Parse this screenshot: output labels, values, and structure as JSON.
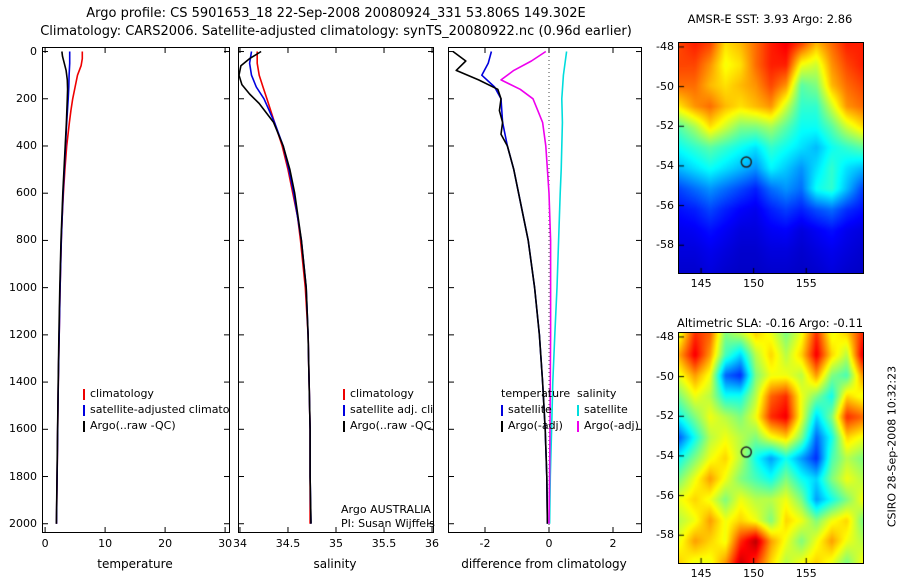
{
  "title": {
    "line1": "Argo profile: CS 5901653_18 22-Sep-2008 20080924_331 53.806S 149.302E",
    "line2": "Climatology: CARS2006. Satellite-adjusted climatology: synTS_20080922.nc (0.96d earlier)"
  },
  "annotations": {
    "program": "Argo AUSTRALIA",
    "pi": "PI: Susan Wijffels"
  },
  "watermark": "CSIRO 28-Sep-2008 10:32:23",
  "colors": {
    "climatology": "#ee0000",
    "satellite": "#0000dd",
    "argo": "#000000",
    "salinity_satellite": "#00dddd",
    "salinity_argo": "#ee00ee"
  },
  "chart_data": [
    {
      "type": "line",
      "target": "plot-temp",
      "title": "",
      "xlabel": "temperature",
      "ylabel": "",
      "xlim": [
        -0.35,
        30.65
      ],
      "ylim": [
        -15,
        2035
      ],
      "xticks": [
        0,
        10,
        20,
        30
      ],
      "yticks": [
        0,
        200,
        400,
        600,
        800,
        1000,
        1200,
        1400,
        1600,
        1800,
        2000
      ],
      "ytick_labels": true,
      "grid": false,
      "series": [
        {
          "name": "climatology",
          "color": "#ee0000",
          "p": [
            0,
            30,
            60,
            100,
            150,
            200,
            250,
            300,
            400,
            500,
            600,
            700,
            800,
            900,
            1000,
            1200,
            1400,
            1600,
            1800,
            2000
          ],
          "v": [
            6.2,
            6.2,
            6.0,
            5.4,
            5.0,
            4.6,
            4.3,
            4.05,
            3.6,
            3.3,
            3.05,
            2.85,
            2.7,
            2.6,
            2.5,
            2.35,
            2.2,
            2.1,
            2.0,
            1.9
          ]
        },
        {
          "name": "satellite-adjusted climatology",
          "color": "#0000dd",
          "p": [
            0,
            50,
            100,
            150,
            200,
            300,
            400,
            500,
            600,
            800,
            1000,
            1200,
            1400,
            1600,
            1800,
            2000
          ],
          "v": [
            4.1,
            4.1,
            4.0,
            3.95,
            3.85,
            3.6,
            3.4,
            3.2,
            3.0,
            2.7,
            2.5,
            2.35,
            2.2,
            2.1,
            2.0,
            1.9
          ]
        },
        {
          "name": "Argo(..raw -QC)",
          "color": "#000000",
          "p": [
            0,
            20,
            50,
            80,
            120,
            160,
            200,
            300,
            400,
            500,
            600,
            800,
            1000,
            1200,
            1400,
            1600,
            1800,
            2000
          ],
          "v": [
            2.8,
            2.9,
            3.2,
            3.5,
            3.7,
            3.75,
            3.7,
            3.55,
            3.35,
            3.15,
            2.95,
            2.65,
            2.45,
            2.3,
            2.18,
            2.08,
            1.98,
            1.88
          ]
        }
      ],
      "legend": [
        {
          "label": "climatology",
          "color": "#ee0000"
        },
        {
          "label": "satellite-adjusted climatology",
          "color": "#0000dd"
        },
        {
          "label": "Argo(..raw -QC)",
          "color": "#000000"
        }
      ]
    },
    {
      "type": "line",
      "target": "plot-sal",
      "title": "",
      "xlabel": "salinity",
      "ylabel": "",
      "xlim": [
        33.99,
        36.01
      ],
      "ylim": [
        -15,
        2035
      ],
      "xticks": [
        34,
        34.5,
        35,
        35.5,
        36
      ],
      "yticks": [
        0,
        200,
        400,
        600,
        800,
        1000,
        1200,
        1400,
        1600,
        1800,
        2000
      ],
      "ytick_labels": false,
      "grid": false,
      "series": [
        {
          "name": "climatology",
          "color": "#ee0000",
          "p": [
            0,
            50,
            100,
            150,
            200,
            300,
            400,
            500,
            600,
            700,
            800,
            1000,
            1200,
            1400,
            1600,
            1800,
            2000
          ],
          "v": [
            34.18,
            34.18,
            34.2,
            34.24,
            34.28,
            34.36,
            34.44,
            34.5,
            34.55,
            34.6,
            34.63,
            34.68,
            34.71,
            34.72,
            34.73,
            34.73,
            34.73
          ]
        },
        {
          "name": "satellite adj. clim.",
          "color": "#0000dd",
          "p": [
            0,
            50,
            100,
            150,
            200,
            300,
            400,
            500,
            600,
            800,
            1000,
            1200,
            1400,
            1600,
            1800,
            2000
          ],
          "v": [
            34.12,
            34.1,
            34.12,
            34.17,
            34.25,
            34.36,
            34.45,
            34.51,
            34.56,
            34.64,
            34.69,
            34.71,
            34.72,
            34.73,
            34.73,
            34.74
          ]
        },
        {
          "name": "Argo(..raw -QC)",
          "color": "#000000",
          "p": [
            0,
            30,
            60,
            100,
            140,
            180,
            220,
            300,
            400,
            500,
            600,
            800,
            1000,
            1200,
            1400,
            1600,
            1800,
            2000
          ],
          "v": [
            34.22,
            34.1,
            34.01,
            33.99,
            34.02,
            34.1,
            34.2,
            34.35,
            34.45,
            34.52,
            34.57,
            34.64,
            34.69,
            34.71,
            34.72,
            34.73,
            34.73,
            34.74
          ]
        }
      ],
      "legend": [
        {
          "label": "climatology",
          "color": "#ee0000"
        },
        {
          "label": "satellite adj. clim.",
          "color": "#0000dd"
        },
        {
          "label": "Argo(..raw -QC)",
          "color": "#000000"
        }
      ]
    },
    {
      "type": "line",
      "target": "plot-diff",
      "title": "",
      "xlabel": "difference from climatology",
      "ylabel": "",
      "xlim": [
        -3.125,
        2.875
      ],
      "ylim": [
        -15,
        2035
      ],
      "xticks": [
        -2,
        0,
        2
      ],
      "yticks": [
        0,
        200,
        400,
        600,
        800,
        1000,
        1200,
        1400,
        1600,
        1800,
        2000
      ],
      "ytick_labels": false,
      "grid": false,
      "zeroline": true,
      "series": [
        {
          "name": "temperature satellite",
          "color": "#0000dd",
          "p": [
            0,
            50,
            100,
            150,
            200,
            300,
            400,
            500,
            600,
            700,
            800,
            900,
            1000,
            1200,
            1400,
            1600,
            1800,
            2000
          ],
          "v": [
            -1.8,
            -1.9,
            -2.1,
            -1.7,
            -1.5,
            -1.45,
            -1.3,
            -1.1,
            -0.95,
            -0.8,
            -0.65,
            -0.55,
            -0.45,
            -0.3,
            -0.2,
            -0.12,
            -0.07,
            -0.05
          ]
        },
        {
          "name": "temperature Argo(-adj)",
          "color": "#000000",
          "p": [
            0,
            40,
            80,
            120,
            160,
            200,
            250,
            300,
            350,
            400,
            500,
            600,
            700,
            800,
            900,
            1000,
            1200,
            1400,
            1600,
            1800,
            2000
          ],
          "v": [
            -3.0,
            -2.6,
            -2.9,
            -2.2,
            -1.6,
            -1.5,
            -1.55,
            -1.45,
            -1.5,
            -1.3,
            -1.1,
            -0.95,
            -0.8,
            -0.65,
            -0.55,
            -0.45,
            -0.3,
            -0.2,
            -0.12,
            -0.07,
            -0.05
          ]
        },
        {
          "name": "salinity satellite",
          "color": "#00dddd",
          "p": [
            0,
            50,
            100,
            200,
            300,
            400,
            500,
            600,
            800,
            1000,
            1200,
            1400,
            1600,
            1800,
            2000
          ],
          "v": [
            0.55,
            0.5,
            0.45,
            0.4,
            0.42,
            0.4,
            0.38,
            0.35,
            0.3,
            0.25,
            0.18,
            0.12,
            0.08,
            0.04,
            0.02
          ]
        },
        {
          "name": "salinity Argo(-adj)",
          "color": "#ee00ee",
          "p": [
            0,
            40,
            80,
            120,
            160,
            200,
            250,
            300,
            400,
            500,
            600,
            800,
            1000,
            1200,
            1400,
            1600,
            1800,
            2000
          ],
          "v": [
            -0.1,
            -0.55,
            -1.1,
            -1.5,
            -0.9,
            -0.5,
            -0.35,
            -0.2,
            -0.1,
            -0.05,
            0.0,
            0.05,
            0.05,
            0.05,
            0.04,
            0.03,
            0.02,
            0.0
          ]
        }
      ],
      "legend_groups": [
        {
          "header": "temperature",
          "items": [
            {
              "label": "satellite",
              "color": "#0000dd"
            },
            {
              "label": "Argo(-adj)",
              "color": "#000000"
            }
          ]
        },
        {
          "header": "salinity",
          "items": [
            {
              "label": "satellite",
              "color": "#00dddd"
            },
            {
              "label": "Argo(-adj)",
              "color": "#ee00ee"
            }
          ]
        }
      ]
    },
    {
      "type": "heatmap",
      "target": "map-sst",
      "title": "AMSR-E SST: 3.93 Argo: 2.86",
      "colormap": "jet",
      "vmin": 0,
      "vmax": 13,
      "x_range": [
        142.9,
        160.4
      ],
      "y_range": [
        -47.8,
        -59.4
      ],
      "xticks": [
        145,
        150,
        155
      ],
      "yticks": [
        -48,
        -50,
        -52,
        -54,
        -56,
        -58
      ],
      "marker": {
        "lon": 149.302,
        "lat": -53.806
      },
      "grid": [
        [
          10.5,
          11,
          10.5,
          8.5,
          9,
          10,
          11,
          11.5,
          10.5,
          9,
          10,
          11,
          11
        ],
        [
          10.5,
          10.5,
          9.5,
          8,
          8.5,
          10,
          11,
          11,
          8,
          7.5,
          9.5,
          10.5,
          11
        ],
        [
          10,
          10,
          9,
          8.5,
          9,
          9.5,
          10.5,
          9.5,
          6,
          6.5,
          9,
          10,
          10.5
        ],
        [
          8.5,
          9.5,
          10,
          9,
          8.5,
          9,
          9.5,
          7.5,
          5.5,
          5.5,
          7.5,
          9.5,
          10
        ],
        [
          6,
          7,
          8.5,
          7.5,
          6.5,
          6.5,
          7,
          6,
          5,
          5,
          6,
          7.5,
          8.5
        ],
        [
          5,
          5.5,
          6,
          5.5,
          5,
          4.5,
          5.5,
          5,
          4.5,
          4,
          5,
          5.5,
          6
        ],
        [
          4,
          4.5,
          5,
          4.5,
          4,
          3.5,
          4.8,
          4.2,
          3.5,
          4.5,
          5.5,
          4.5,
          4
        ],
        [
          2.5,
          3,
          3.5,
          3,
          2.5,
          2,
          3,
          3.5,
          3,
          5,
          5.5,
          4,
          2.5
        ],
        [
          1.8,
          2,
          2.5,
          2,
          1.6,
          1.4,
          2,
          2.4,
          2,
          2.6,
          3,
          2.2,
          1.8
        ],
        [
          1.4,
          1.5,
          1.8,
          1.5,
          1.2,
          1.2,
          1.5,
          1.6,
          1.2,
          1.5,
          1.8,
          1.4,
          1.2
        ],
        [
          1.2,
          1.2,
          1.4,
          1.2,
          1,
          1,
          1.2,
          1.2,
          1,
          1.2,
          1.4,
          1.2,
          1
        ],
        [
          1,
          1,
          1.2,
          1,
          0.9,
          0.9,
          1,
          1,
          0.9,
          1,
          1.2,
          1,
          0.9
        ]
      ]
    },
    {
      "type": "heatmap",
      "target": "map-sla",
      "title": "Altimetric SLA: -0.16 Argo: -0.11",
      "colormap": "jet",
      "vmin": -0.45,
      "vmax": 0.45,
      "x_range": [
        142.9,
        160.4
      ],
      "y_range": [
        -47.8,
        -59.4
      ],
      "xticks": [
        145,
        150,
        155
      ],
      "yticks": [
        -48,
        -50,
        -52,
        -54,
        -56,
        -58
      ],
      "marker": {
        "lon": 149.302,
        "lat": -53.806
      },
      "grid": [
        [
          0.1,
          0.3,
          0.25,
          0.0,
          0.05,
          0.15,
          0.1,
          0.0,
          0.1,
          0.3,
          0.1,
          0.15,
          0.3
        ],
        [
          0.2,
          0.35,
          0.2,
          -0.05,
          -0.15,
          0.05,
          0.15,
          0.05,
          0.15,
          0.35,
          0.15,
          0.05,
          0.35
        ],
        [
          0.1,
          0.2,
          0.1,
          -0.25,
          -0.3,
          0.0,
          0.1,
          0.1,
          0.05,
          0.2,
          0.0,
          -0.05,
          0.2
        ],
        [
          0.0,
          0.1,
          0.05,
          -0.1,
          -0.1,
          0.05,
          0.25,
          0.3,
          0.1,
          0.0,
          -0.1,
          0.15,
          0.1
        ],
        [
          -0.1,
          0.0,
          0.1,
          0.05,
          0.0,
          0.1,
          0.3,
          0.35,
          0.1,
          -0.15,
          0.0,
          0.3,
          0.25
        ],
        [
          -0.25,
          -0.1,
          0.05,
          0.1,
          0.05,
          0.0,
          0.1,
          0.15,
          0.0,
          -0.25,
          -0.1,
          0.15,
          0.1
        ],
        [
          -0.1,
          0.0,
          0.1,
          0.15,
          0.05,
          -0.1,
          -0.2,
          -0.1,
          -0.2,
          -0.3,
          -0.05,
          0.05,
          0.0
        ],
        [
          0.0,
          0.1,
          0.2,
          0.1,
          0.0,
          -0.05,
          -0.1,
          0.0,
          -0.1,
          -0.15,
          0.0,
          0.1,
          0.05
        ],
        [
          0.1,
          0.15,
          0.1,
          0.0,
          0.1,
          0.05,
          0.05,
          0.1,
          0.0,
          -0.2,
          -0.1,
          0.0,
          0.1
        ],
        [
          0.05,
          0.1,
          0.2,
          0.1,
          0.15,
          0.1,
          0.0,
          0.15,
          0.1,
          0.0,
          0.1,
          0.15,
          0.0
        ],
        [
          0.1,
          0.2,
          0.15,
          0.1,
          0.3,
          0.4,
          0.2,
          0.1,
          0.0,
          0.1,
          0.2,
          0.1,
          0.05
        ],
        [
          0.15,
          0.1,
          0.1,
          0.2,
          0.38,
          0.3,
          0.15,
          0.05,
          0.1,
          0.15,
          0.1,
          0.0,
          0.1
        ]
      ]
    }
  ]
}
